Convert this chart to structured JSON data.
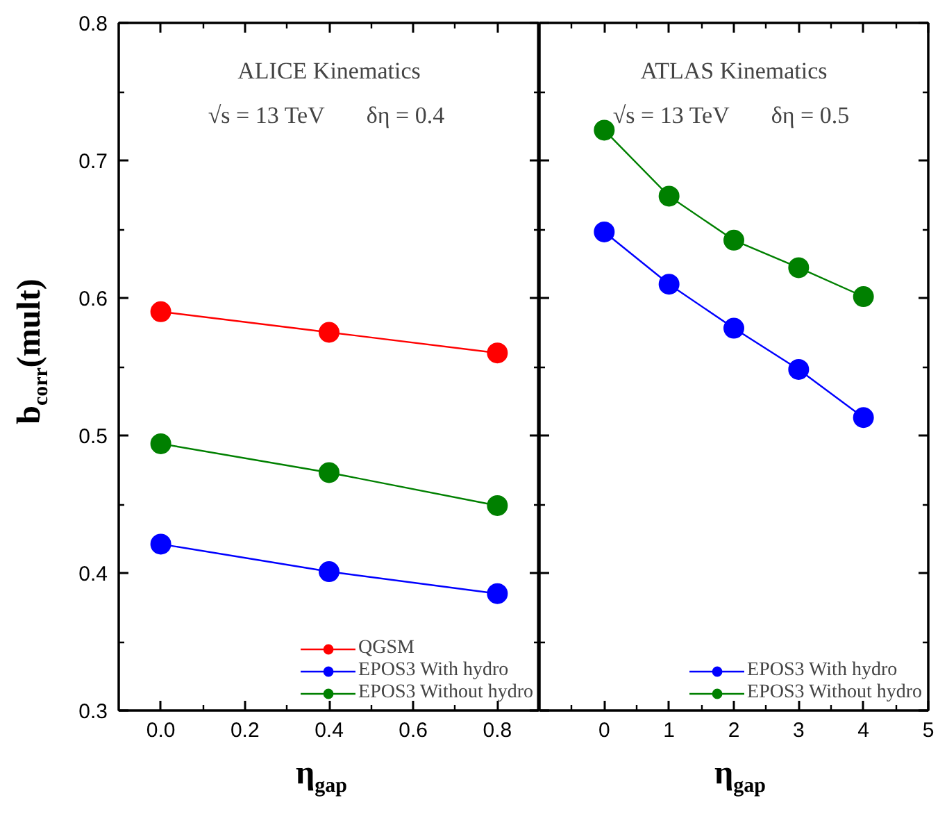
{
  "chart_data": [
    {
      "type": "line",
      "xlabel": "η$_{gap}$",
      "ylabel": "b$_{corr}$(mult)",
      "annotations": [
        "ALICE Kinematics",
        "√s = 13 TeV",
        "δη = 0.4"
      ],
      "x": [
        0,
        0.4,
        0.8
      ],
      "series": [
        {
          "name": "QGSM",
          "color": "#ff0000",
          "values": [
            0.59,
            0.575,
            0.56
          ]
        },
        {
          "name": "EPOS3 With hydro",
          "color": "#0000ff",
          "values": [
            0.421,
            0.401,
            0.385
          ]
        },
        {
          "name": "EPOS3 Without hydro",
          "color": "#008000",
          "values": [
            0.494,
            0.473,
            0.449
          ]
        }
      ],
      "xlim": [
        -0.1,
        0.9
      ],
      "ylim": [
        0.3,
        0.8
      ],
      "xticks": [
        {
          "value": 0,
          "label": "0.0"
        },
        {
          "value": 0.1,
          "label": null
        },
        0.2,
        {
          "value": 0.3,
          "label": null
        },
        0.4,
        {
          "value": 0.5,
          "label": null
        },
        0.6,
        {
          "value": 0.7,
          "label": null
        },
        0.8
      ],
      "yticks": [
        0.3,
        {
          "value": 0.35,
          "label": null
        },
        0.4,
        {
          "value": 0.45,
          "label": null
        },
        0.5,
        {
          "value": 0.55,
          "label": null
        },
        0.6,
        {
          "value": 0.65,
          "label": null
        },
        0.7,
        {
          "value": 0.75,
          "label": null
        },
        0.8
      ],
      "grid": false,
      "legend": "bottom right",
      "marker": "circle",
      "line_style": "solid"
    },
    {
      "type": "line",
      "xlabel": "η$_{gap}$",
      "annotations": [
        "ATLAS Kinematics",
        "√s = 13 TeV",
        "δη = 0.5"
      ],
      "x": [
        0,
        1,
        2,
        3,
        4
      ],
      "series": [
        {
          "name": "EPOS3 With hydro",
          "color": "#0000ff",
          "values": [
            0.648,
            0.61,
            0.578,
            0.548,
            0.513
          ]
        },
        {
          "name": "EPOS3 Without hydro",
          "color": "#008000",
          "values": [
            0.722,
            0.674,
            0.642,
            0.622,
            0.601
          ]
        }
      ],
      "xlim": [
        -1,
        5
      ],
      "ylim": [
        0.3,
        0.8
      ],
      "xticks": [
        {
          "value": -0.5,
          "label": null
        },
        0,
        {
          "value": 0.5,
          "label": null
        },
        1,
        {
          "value": 1.5,
          "label": null
        },
        2,
        {
          "value": 2.5,
          "label": null
        },
        3,
        {
          "value": 3.5,
          "label": null
        },
        4,
        {
          "value": 4.5,
          "label": null
        },
        5
      ],
      "yticks": [
        0.3,
        {
          "value": 0.35,
          "label": null
        },
        0.4,
        {
          "value": 0.45,
          "label": null
        },
        0.5,
        {
          "value": 0.55,
          "label": null
        },
        0.6,
        {
          "value": 0.65,
          "label": null
        },
        0.7,
        {
          "value": 0.75,
          "label": null
        },
        0.8
      ],
      "tick_labels": "x",
      "grid": false,
      "legend": "bottom right",
      "marker": "circle",
      "line_style": "solid"
    }
  ]
}
